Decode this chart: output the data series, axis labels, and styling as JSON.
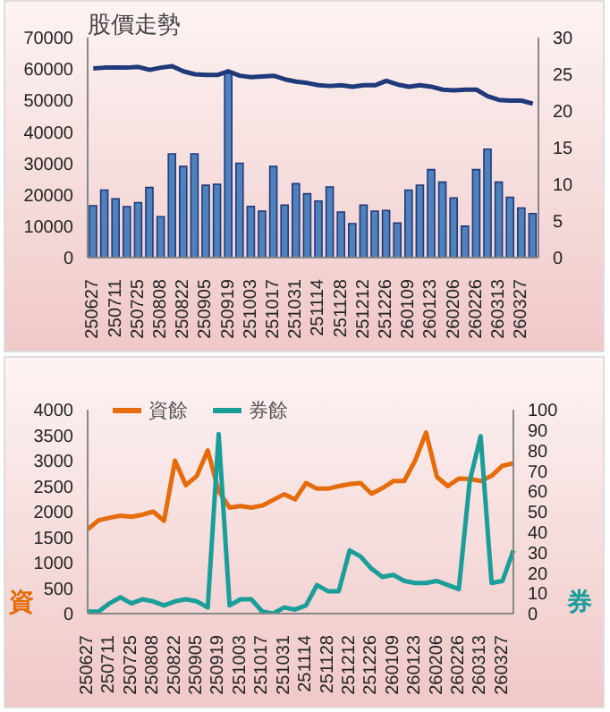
{
  "chart_data": [
    {
      "type": "bar",
      "title": "股價走勢",
      "categories": [
        "250627",
        null,
        "250711",
        null,
        "250725",
        null,
        "250808",
        null,
        "250822",
        null,
        "250905",
        null,
        "250919",
        null,
        "251003",
        null,
        "251017",
        null,
        "251031",
        null,
        "251114",
        null,
        "251128",
        null,
        "251212",
        null,
        "251226",
        null,
        "260109",
        null,
        "260123",
        null,
        "260206",
        null,
        "260226",
        null,
        "260313",
        null,
        "260327",
        null
      ],
      "series": [
        {
          "color": "#4f81bd",
          "values": [
            16500,
            21500,
            18700,
            16200,
            17500,
            22300,
            13000,
            33000,
            29000,
            33000,
            23000,
            23300,
            59000,
            30000,
            16300,
            14800,
            29000,
            16700,
            23500,
            20300,
            18000,
            22500,
            14500,
            10800,
            16700,
            14800,
            15000,
            11000,
            21500,
            23000,
            28000,
            24000,
            19000,
            10000,
            28000,
            34500,
            24000,
            19200,
            15800,
            14000
          ]
        },
        {
          "type": "line",
          "axis": "y2",
          "color": "#1f3a7a",
          "values": [
            25.8,
            25.9,
            25.9,
            25.9,
            26,
            25.6,
            25.9,
            26.1,
            25.4,
            25,
            24.9,
            24.9,
            25.4,
            24.8,
            24.6,
            24.7,
            24.8,
            24.3,
            24,
            23.8,
            23.5,
            23.4,
            23.5,
            23.3,
            23.5,
            23.5,
            24.1,
            23.6,
            23.3,
            23.5,
            23.3,
            22.9,
            22.8,
            22.9,
            22.9,
            22,
            21.5,
            21.4,
            21.4,
            21
          ]
        }
      ],
      "ylim": [
        0,
        70000
      ],
      "yticks": [
        0,
        10000,
        20000,
        30000,
        40000,
        50000,
        60000,
        70000
      ],
      "y2lim": [
        0,
        30
      ],
      "y2ticks": [
        0,
        5,
        10,
        15,
        20,
        25,
        30
      ],
      "grid": false,
      "legend": false,
      "marker": "none"
    },
    {
      "type": "line",
      "ylabel": "資",
      "y2label": "券",
      "categories": [
        "250627",
        null,
        "250711",
        null,
        "250725",
        null,
        "250808",
        null,
        "250822",
        null,
        "250905",
        null,
        "250919",
        null,
        "251003",
        null,
        "251017",
        null,
        "251031",
        null,
        "251114",
        null,
        "251128",
        null,
        "251212",
        null,
        "251226",
        null,
        "260109",
        null,
        "260123",
        null,
        "260206",
        null,
        "260226",
        null,
        "260313",
        null,
        "260327",
        null
      ],
      "series": [
        {
          "name": "資餘",
          "color": "#e46c0a",
          "values": [
            1650,
            1830,
            1880,
            1920,
            1900,
            1940,
            2000,
            1820,
            3000,
            2520,
            2700,
            3200,
            2400,
            2080,
            2110,
            2080,
            2120,
            2230,
            2340,
            2240,
            2560,
            2450,
            2450,
            2500,
            2540,
            2560,
            2350,
            2460,
            2600,
            2600,
            3000,
            3550,
            2680,
            2500,
            2650,
            2640,
            2600,
            2700,
            2900,
            2950
          ]
        },
        {
          "name": "券餘",
          "axis": "y2",
          "color": "#1a9e9a",
          "values": [
            1,
            1,
            5,
            8,
            5,
            7,
            6,
            4,
            6,
            7,
            6,
            3,
            88,
            4,
            7,
            7,
            1,
            0,
            3,
            2,
            4,
            14,
            11,
            11,
            31,
            28,
            22,
            18,
            19,
            16,
            15,
            15,
            16,
            14,
            12,
            65,
            87,
            15,
            16,
            31
          ]
        }
      ],
      "ylim": [
        0,
        4000
      ],
      "yticks": [
        0,
        500,
        1000,
        1500,
        2000,
        2500,
        3000,
        3500,
        4000
      ],
      "y2lim": [
        0,
        100
      ],
      "y2ticks": [
        0,
        10,
        20,
        30,
        40,
        50,
        60,
        70,
        80,
        90,
        100
      ],
      "grid": false,
      "legend": "top left",
      "marker": "none"
    }
  ]
}
